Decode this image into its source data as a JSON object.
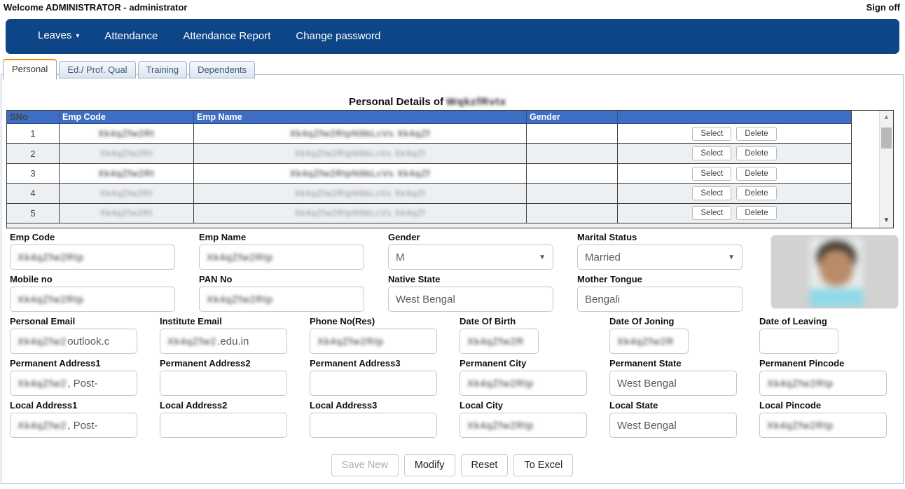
{
  "header": {
    "welcome": "Welcome ADMINISTRATOR - administrator",
    "sign_off": "Sign off"
  },
  "nav": {
    "items": [
      {
        "label": "Leaves",
        "dropdown": true
      },
      {
        "label": "Attendance",
        "dropdown": false
      },
      {
        "label": "Attendance Report",
        "dropdown": false
      },
      {
        "label": "Change password",
        "dropdown": false
      }
    ]
  },
  "tabs": [
    {
      "label": "Personal",
      "active": true
    },
    {
      "label": "Ed./ Prof. Qual",
      "active": false
    },
    {
      "label": "Training",
      "active": false
    },
    {
      "label": "Dependents",
      "active": false
    }
  ],
  "title": {
    "prefix": "Personal Details of",
    "subject_redacted": true
  },
  "employee_table": {
    "columns": [
      "SNo",
      "Emp Code",
      "Emp Name",
      "Gender",
      ""
    ],
    "action_labels": [
      "Select",
      "Delete"
    ],
    "rows": [
      {
        "sno": "1",
        "emp_code_redacted": true,
        "emp_name_redacted": true,
        "gender": "",
        "shaded": false
      },
      {
        "sno": "2",
        "emp_code_redacted": true,
        "emp_name_redacted": true,
        "gender": "",
        "shaded": true
      },
      {
        "sno": "3",
        "emp_code_redacted": true,
        "emp_name_redacted": true,
        "gender": "",
        "shaded": false
      },
      {
        "sno": "4",
        "emp_code_redacted": true,
        "emp_name_redacted": true,
        "gender": "",
        "shaded": true
      },
      {
        "sno": "5",
        "emp_code_redacted": true,
        "emp_name_redacted": true,
        "gender": "",
        "shaded": true
      }
    ]
  },
  "form": {
    "rows": [
      {
        "type": "wide",
        "fields": [
          {
            "label": "Emp Code",
            "redacted": true,
            "value": "",
            "suffix": "",
            "control": "input"
          },
          {
            "label": "Emp Name",
            "redacted": true,
            "value": "",
            "suffix": "",
            "control": "input"
          },
          {
            "label": "Gender",
            "redacted": false,
            "value": "M",
            "suffix": "",
            "control": "select"
          },
          {
            "label": "Marital Status",
            "redacted": false,
            "value": "Married",
            "suffix": "",
            "control": "select"
          }
        ]
      },
      {
        "type": "wide",
        "fields": [
          {
            "label": "Mobile no",
            "redacted": true,
            "value": "",
            "suffix": "",
            "control": "input"
          },
          {
            "label": "PAN No",
            "redacted": true,
            "value": "",
            "suffix": "",
            "control": "input"
          },
          {
            "label": "Native State",
            "redacted": false,
            "value": "West Bengal",
            "suffix": "",
            "control": "input"
          },
          {
            "label": "Mother Tongue",
            "redacted": false,
            "value": "Bengali",
            "suffix": "",
            "control": "input"
          }
        ]
      },
      {
        "type": "narrow",
        "fields": [
          {
            "label": "Personal Email",
            "redacted": true,
            "value": "",
            "suffix": "outlook.c",
            "control": "input"
          },
          {
            "label": "Institute Email",
            "redacted": true,
            "value": "",
            "suffix": ".edu.in",
            "control": "input"
          },
          {
            "label": "Phone No(Res)",
            "redacted": true,
            "value": "",
            "suffix": "",
            "control": "input"
          },
          {
            "label": "Date Of Birth",
            "redacted": true,
            "value": "",
            "suffix": "",
            "control": "input",
            "size": "date"
          },
          {
            "label": "Date Of Joning",
            "redacted": true,
            "value": "",
            "suffix": "",
            "control": "input",
            "size": "date"
          },
          {
            "label": "Date of Leaving",
            "redacted": false,
            "value": "",
            "suffix": "",
            "control": "input",
            "size": "date"
          }
        ]
      },
      {
        "type": "narrow",
        "fields": [
          {
            "label": "Permanent Address1",
            "redacted": true,
            "value": "",
            "suffix": ", Post-",
            "control": "input"
          },
          {
            "label": "Permanent Address2",
            "redacted": false,
            "value": "",
            "suffix": "",
            "control": "input"
          },
          {
            "label": "Permanent Address3",
            "redacted": false,
            "value": "",
            "suffix": "",
            "control": "input"
          },
          {
            "label": "Permanent City",
            "redacted": true,
            "value": "",
            "suffix": "",
            "control": "input"
          },
          {
            "label": "Permanent State",
            "redacted": false,
            "value": "West Bengal",
            "suffix": "",
            "control": "input"
          },
          {
            "label": "Permanent Pincode",
            "redacted": true,
            "value": "",
            "suffix": "",
            "control": "input"
          }
        ]
      },
      {
        "type": "narrow",
        "fields": [
          {
            "label": "Local Address1",
            "redacted": true,
            "value": "",
            "suffix": ", Post-",
            "control": "input"
          },
          {
            "label": "Local Address2",
            "redacted": false,
            "value": "",
            "suffix": "",
            "control": "input"
          },
          {
            "label": "Local Address3",
            "redacted": false,
            "value": "",
            "suffix": "",
            "control": "input"
          },
          {
            "label": "Local City",
            "redacted": true,
            "value": "",
            "suffix": "",
            "control": "input"
          },
          {
            "label": "Local State",
            "redacted": false,
            "value": "West Bengal",
            "suffix": "",
            "control": "input"
          },
          {
            "label": "Local Pincode",
            "redacted": true,
            "value": "",
            "suffix": "",
            "control": "input"
          }
        ]
      }
    ]
  },
  "actions": [
    {
      "label": "Save New",
      "disabled": true
    },
    {
      "label": "Modify",
      "disabled": false
    },
    {
      "label": "Reset",
      "disabled": false
    },
    {
      "label": "To Excel",
      "disabled": false
    }
  ],
  "photo": {
    "present": true,
    "redacted": true
  },
  "colors": {
    "nav_bg": "#0d4586",
    "table_header_bg": "#3e6fc4",
    "row_alt_bg": "#ecf0f3",
    "tab_active_accent": "#e89400",
    "container_border": "#a3bfdc"
  }
}
